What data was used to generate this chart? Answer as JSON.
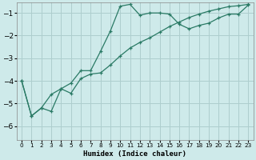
{
  "xlabel": "Humidex (Indice chaleur)",
  "background_color": "#ceeaea",
  "grid_color": "#aecece",
  "line_color": "#2a7a65",
  "xlim": [
    -0.5,
    23.5
  ],
  "ylim": [
    -6.6,
    -0.55
  ],
  "yticks": [
    -6,
    -5,
    -4,
    -3,
    -2,
    -1
  ],
  "xtick_labels": [
    "0",
    "1",
    "2",
    "3",
    "4",
    "5",
    "6",
    "7",
    "8",
    "9",
    "10",
    "11",
    "12",
    "13",
    "14",
    "15",
    "16",
    "17",
    "18",
    "19",
    "20",
    "21",
    "22",
    "23"
  ],
  "xtick_pos": [
    0,
    1,
    2,
    3,
    4,
    5,
    6,
    7,
    8,
    9,
    10,
    11,
    12,
    13,
    14,
    15,
    16,
    17,
    18,
    19,
    20,
    21,
    22,
    23
  ],
  "line1_x": [
    0,
    1,
    2,
    3,
    4,
    5,
    6,
    7,
    8,
    9,
    10,
    11,
    12,
    13,
    14,
    15,
    16,
    17,
    18,
    19,
    20,
    21,
    22,
    23
  ],
  "line1_y": [
    -4.0,
    -5.55,
    -5.2,
    -4.6,
    -4.35,
    -4.1,
    -3.55,
    -3.55,
    -2.7,
    -1.8,
    -0.7,
    -0.62,
    -1.1,
    -1.0,
    -1.0,
    -1.05,
    -1.5,
    -1.7,
    -1.55,
    -1.45,
    -1.22,
    -1.05,
    -1.05,
    -0.65
  ],
  "line2_x": [
    0,
    1,
    2,
    3,
    4,
    5,
    6,
    7,
    8,
    9,
    10,
    11,
    12,
    13,
    14,
    15,
    16,
    17,
    18,
    19,
    20,
    21,
    22,
    23
  ],
  "line2_y": [
    -4.0,
    -5.55,
    -5.2,
    -5.35,
    -4.35,
    -4.55,
    -3.9,
    -3.7,
    -3.65,
    -3.3,
    -2.9,
    -2.55,
    -2.3,
    -2.1,
    -1.85,
    -1.6,
    -1.4,
    -1.2,
    -1.05,
    -0.92,
    -0.82,
    -0.72,
    -0.68,
    -0.62
  ]
}
